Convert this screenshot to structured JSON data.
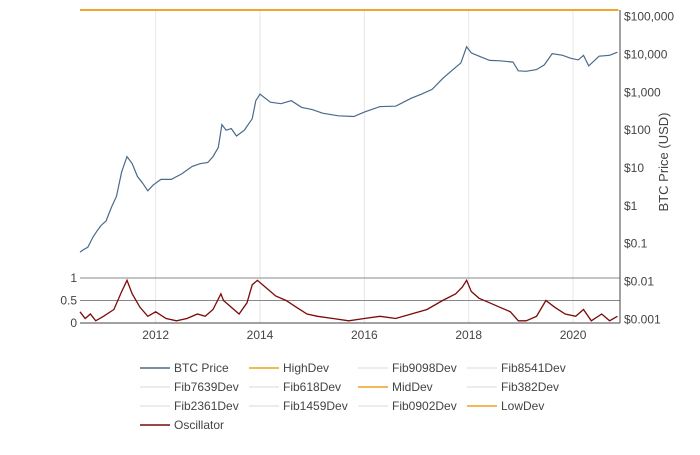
{
  "chart_data": {
    "type": "line",
    "title": "",
    "xlabel": "",
    "ylabel": "BTC Price (USD)",
    "x_ticks": [
      "2012",
      "2014",
      "2016",
      "2018",
      "2020"
    ],
    "x_tick_years": [
      2012,
      2014,
      2016,
      2018,
      2020
    ],
    "xlim": [
      2010.55,
      2020.9
    ],
    "y_scale": "log",
    "ylim": [
      0.0008,
      150000
    ],
    "y_ticks": [
      "$100,000",
      "$10,000",
      "$1,000",
      "$100",
      "$10",
      "$1",
      "$0.1",
      "$0.01",
      "$0.001"
    ],
    "y_tick_values": [
      100000,
      10000,
      1000,
      100,
      10,
      1,
      0.1,
      0.01,
      0.001
    ],
    "osc_ticks": [
      "1",
      "0.5",
      "0"
    ],
    "osc_tick_values": [
      1,
      0.5,
      0
    ],
    "osc_ylim": [
      0,
      1
    ],
    "grid": true,
    "legend_placement": "bottom",
    "series": [
      {
        "name": "BTC Price",
        "color": "#4a6a8a",
        "x": [
          2010.55,
          2010.62,
          2010.7,
          2010.8,
          2010.88,
          2010.95,
          2011.05,
          2011.15,
          2011.25,
          2011.35,
          2011.45,
          2011.55,
          2011.65,
          2011.75,
          2011.85,
          2011.95,
          2012.1,
          2012.3,
          2012.5,
          2012.7,
          2012.85,
          2013.0,
          2013.1,
          2013.2,
          2013.27,
          2013.35,
          2013.45,
          2013.55,
          2013.7,
          2013.85,
          2013.92,
          2014.0,
          2014.1,
          2014.2,
          2014.4,
          2014.6,
          2014.8,
          2015.0,
          2015.2,
          2015.5,
          2015.8,
          2016.0,
          2016.3,
          2016.6,
          2016.9,
          2017.1,
          2017.3,
          2017.5,
          2017.7,
          2017.85,
          2017.96,
          2018.05,
          2018.2,
          2018.4,
          2018.6,
          2018.85,
          2018.95,
          2019.1,
          2019.3,
          2019.45,
          2019.6,
          2019.8,
          2019.95,
          2020.1,
          2020.2,
          2020.3,
          2020.5,
          2020.7,
          2020.85
        ],
        "values": [
          0.06,
          0.07,
          0.08,
          0.15,
          0.22,
          0.3,
          0.4,
          0.9,
          1.8,
          8,
          20,
          13,
          6,
          4,
          2.5,
          3.5,
          5,
          5,
          7,
          11,
          13,
          14,
          20,
          35,
          140,
          100,
          110,
          70,
          100,
          200,
          600,
          900,
          700,
          550,
          500,
          600,
          400,
          350,
          280,
          240,
          230,
          300,
          420,
          430,
          700,
          900,
          1200,
          2300,
          4000,
          6000,
          16000,
          11000,
          9000,
          7000,
          6800,
          6300,
          3700,
          3600,
          4000,
          5300,
          10500,
          9500,
          8000,
          7200,
          9500,
          5000,
          9000,
          9500,
          11500
        ]
      },
      {
        "name": "HighDev",
        "color": "#f0a020",
        "band_mult": 8,
        "major": true
      },
      {
        "name": "Fib9098Dev",
        "color": "#d8d8d8",
        "band_mult": 5.2,
        "major": false
      },
      {
        "name": "Fib8541Dev",
        "color": "#d8d8d8",
        "band_mult": 3.8,
        "major": false
      },
      {
        "name": "Fib7639Dev",
        "color": "#d8d8d8",
        "band_mult": 2.6,
        "major": false
      },
      {
        "name": "Fib618Dev",
        "color": "#d8d8d8",
        "band_mult": 1.75,
        "major": false
      },
      {
        "name": "MidDev",
        "color": "#f0a020",
        "band_mult": 1.0,
        "major": true
      },
      {
        "name": "Fib382Dev",
        "color": "#d8d8d8",
        "band_mult": 0.62,
        "major": false
      },
      {
        "name": "Fib2361Dev",
        "color": "#d8d8d8",
        "band_mult": 0.4,
        "major": false
      },
      {
        "name": "Fib1459Dev",
        "color": "#d8d8d8",
        "band_mult": 0.27,
        "major": false
      },
      {
        "name": "Fib0902Dev",
        "color": "#d8d8d8",
        "band_mult": 0.19,
        "major": false
      },
      {
        "name": "LowDev",
        "color": "#f0a020",
        "band_mult": 0.125,
        "major": true
      },
      {
        "name": "Oscillator",
        "color": "#7a0a0a",
        "x": [
          2010.55,
          2010.65,
          2010.75,
          2010.85,
          2011.0,
          2011.2,
          2011.35,
          2011.45,
          2011.55,
          2011.7,
          2011.85,
          2012.0,
          2012.2,
          2012.4,
          2012.6,
          2012.8,
          2012.95,
          2013.1,
          2013.25,
          2013.3,
          2013.45,
          2013.6,
          2013.75,
          2013.85,
          2013.95,
          2014.1,
          2014.3,
          2014.5,
          2014.7,
          2014.9,
          2015.1,
          2015.4,
          2015.7,
          2016.0,
          2016.3,
          2016.6,
          2016.9,
          2017.2,
          2017.5,
          2017.75,
          2017.88,
          2017.96,
          2018.05,
          2018.2,
          2018.4,
          2018.6,
          2018.8,
          2018.95,
          2019.1,
          2019.3,
          2019.48,
          2019.65,
          2019.85,
          2020.05,
          2020.2,
          2020.35,
          2020.55,
          2020.7,
          2020.85
        ],
        "values": [
          0.25,
          0.1,
          0.2,
          0.05,
          0.15,
          0.3,
          0.7,
          0.95,
          0.65,
          0.35,
          0.15,
          0.25,
          0.1,
          0.05,
          0.1,
          0.2,
          0.15,
          0.3,
          0.65,
          0.5,
          0.35,
          0.2,
          0.45,
          0.85,
          0.95,
          0.8,
          0.6,
          0.5,
          0.35,
          0.2,
          0.15,
          0.1,
          0.05,
          0.1,
          0.15,
          0.1,
          0.2,
          0.3,
          0.5,
          0.65,
          0.8,
          0.95,
          0.7,
          0.55,
          0.45,
          0.35,
          0.25,
          0.05,
          0.05,
          0.15,
          0.5,
          0.35,
          0.2,
          0.15,
          0.3,
          0.05,
          0.2,
          0.05,
          0.15
        ]
      }
    ]
  }
}
